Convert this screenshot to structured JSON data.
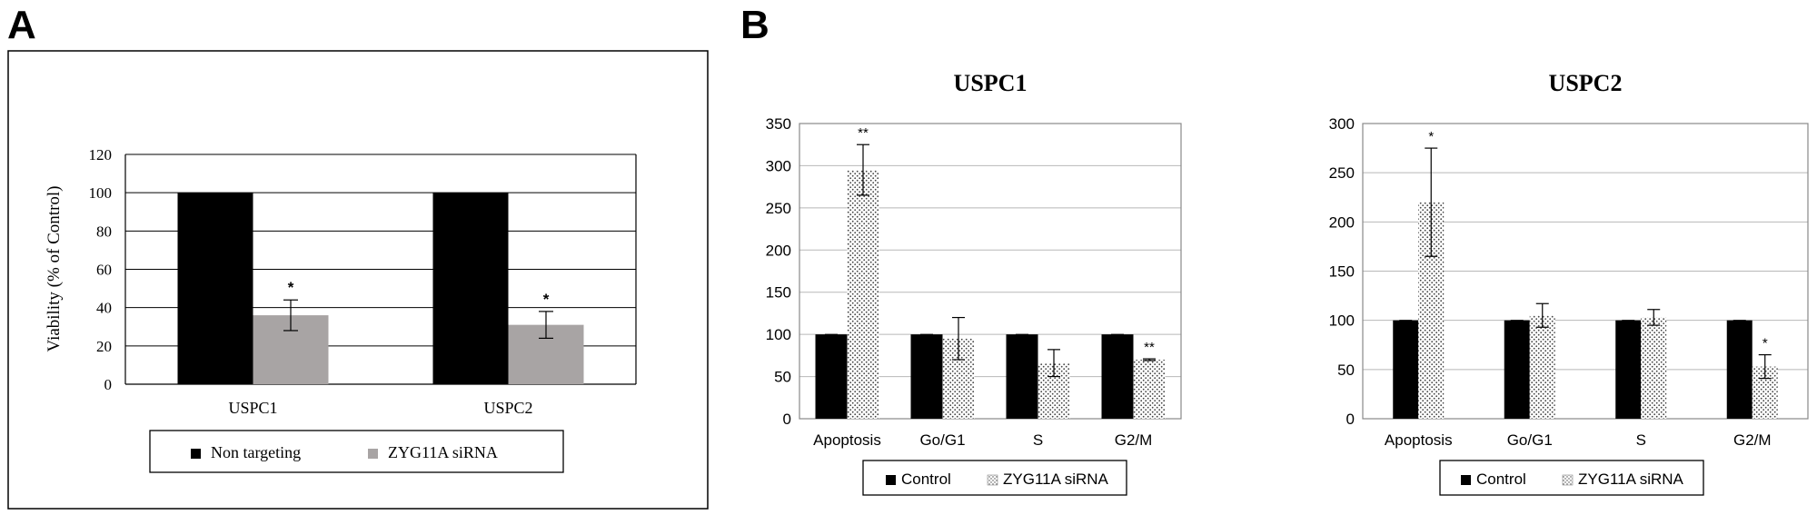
{
  "figure": {
    "panel_a_letter": "A",
    "panel_b_letter": "B"
  },
  "colors": {
    "black": "#000000",
    "gray": "#a8a4a4",
    "grid": "#b8b8b8",
    "axis": "#888888",
    "dots": "#444444"
  },
  "chart_data": [
    {
      "id": "A",
      "type": "bar",
      "title": "",
      "ylabel": "Viability  (% of Control)",
      "xlabel": "",
      "categories": [
        "USPC1",
        "USPC2"
      ],
      "ylim": [
        0,
        120
      ],
      "yticks": [
        "0",
        "20",
        "40",
        "60",
        "80",
        "100",
        "120"
      ],
      "grid": true,
      "legend_position": "bottom",
      "series": [
        {
          "name": "Non targeting",
          "values": [
            100,
            100
          ],
          "errors": [
            0,
            0
          ],
          "significance": [
            "",
            ""
          ],
          "style": "black"
        },
        {
          "name": "ZYG11A siRNA",
          "values": [
            36,
            31
          ],
          "errors": [
            8,
            7
          ],
          "significance": [
            "*",
            "*"
          ],
          "style": "gray"
        }
      ]
    },
    {
      "id": "B1",
      "type": "bar",
      "title": "USPC1",
      "ylabel": "",
      "xlabel": "",
      "categories": [
        "Apoptosis",
        "Go/G1",
        "S",
        "G2/M"
      ],
      "ylim": [
        0,
        350
      ],
      "yticks": [
        "0",
        "50",
        "100",
        "150",
        "200",
        "250",
        "300",
        "350"
      ],
      "grid": true,
      "legend_position": "bottom",
      "series": [
        {
          "name": "Control",
          "values": [
            100,
            100,
            100,
            100
          ],
          "errors": [
            0,
            0,
            0,
            0
          ],
          "significance": [
            "",
            "",
            "",
            ""
          ],
          "style": "black"
        },
        {
          "name": "ZYG11A siRNA",
          "values": [
            295,
            95,
            66,
            70
          ],
          "errors": [
            30,
            25,
            16,
            1
          ],
          "significance": [
            "**",
            "",
            "",
            "**"
          ],
          "style": "dotted"
        }
      ]
    },
    {
      "id": "B2",
      "type": "bar",
      "title": "USPC2",
      "ylabel": "",
      "xlabel": "",
      "categories": [
        "Apoptosis",
        "Go/G1",
        "S",
        "G2/M"
      ],
      "ylim": [
        0,
        300
      ],
      "yticks": [
        "0",
        "50",
        "100",
        "150",
        "200",
        "250",
        "300"
      ],
      "grid": true,
      "legend_position": "bottom",
      "series": [
        {
          "name": "Control",
          "values": [
            100,
            100,
            100,
            100
          ],
          "errors": [
            0,
            0,
            0,
            0
          ],
          "significance": [
            "",
            "",
            "",
            ""
          ],
          "style": "black"
        },
        {
          "name": "ZYG11A siRNA",
          "values": [
            220,
            105,
            103,
            53
          ],
          "errors": [
            55,
            12,
            8,
            12
          ],
          "significance": [
            "*",
            "",
            "",
            "*"
          ],
          "style": "dotted"
        }
      ]
    }
  ]
}
